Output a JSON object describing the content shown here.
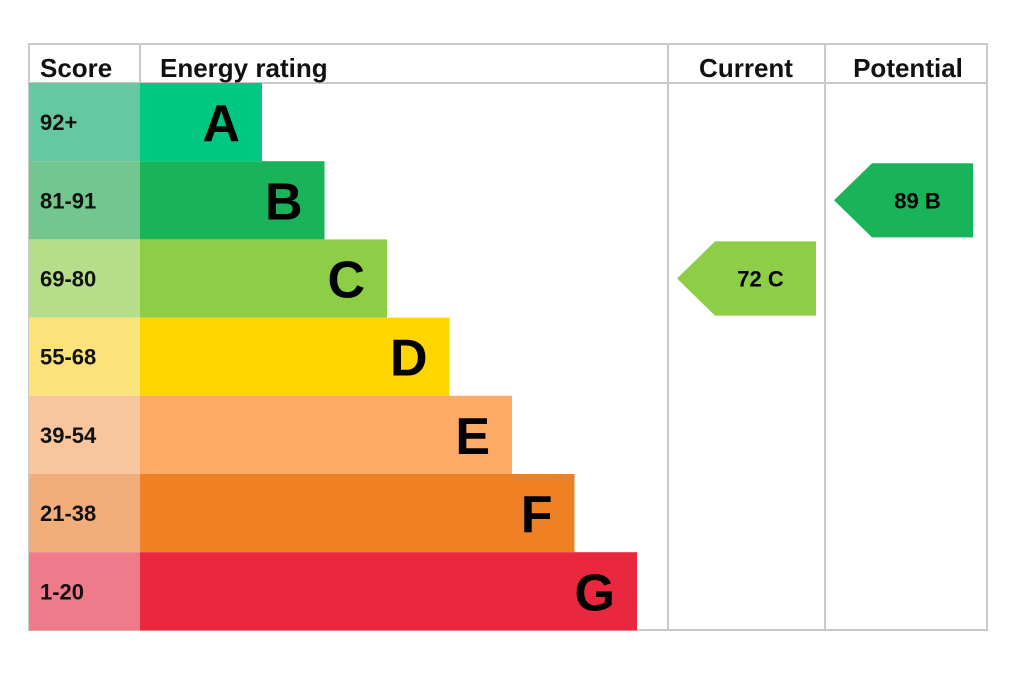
{
  "headers": {
    "score": "Score",
    "energy_rating": "Energy rating",
    "current": "Current",
    "potential": "Potential"
  },
  "chart_data": {
    "type": "bar",
    "bands": [
      {
        "letter": "A",
        "range": "92+",
        "bar_color": "#00c781",
        "score_bg": "#66c8a3"
      },
      {
        "letter": "B",
        "range": "81-91",
        "bar_color": "#19b459",
        "score_bg": "#74c690"
      },
      {
        "letter": "C",
        "range": "69-80",
        "bar_color": "#8dce46",
        "score_bg": "#b5dd8a"
      },
      {
        "letter": "D",
        "range": "55-68",
        "bar_color": "#ffd500",
        "score_bg": "#fbe37a"
      },
      {
        "letter": "E",
        "range": "39-54",
        "bar_color": "#fcaa65",
        "score_bg": "#f8c59c"
      },
      {
        "letter": "F",
        "range": "21-38",
        "bar_color": "#ef8023",
        "score_bg": "#f1ae7b"
      },
      {
        "letter": "G",
        "range": "1-20",
        "bar_color": "#e9283f",
        "score_bg": "#ee7a8a"
      }
    ],
    "current": {
      "value": 72,
      "band": "C",
      "label": "72  C",
      "color": "#8dce46"
    },
    "potential": {
      "value": 89,
      "band": "B",
      "label": "89  B",
      "color": "#19b459"
    }
  }
}
